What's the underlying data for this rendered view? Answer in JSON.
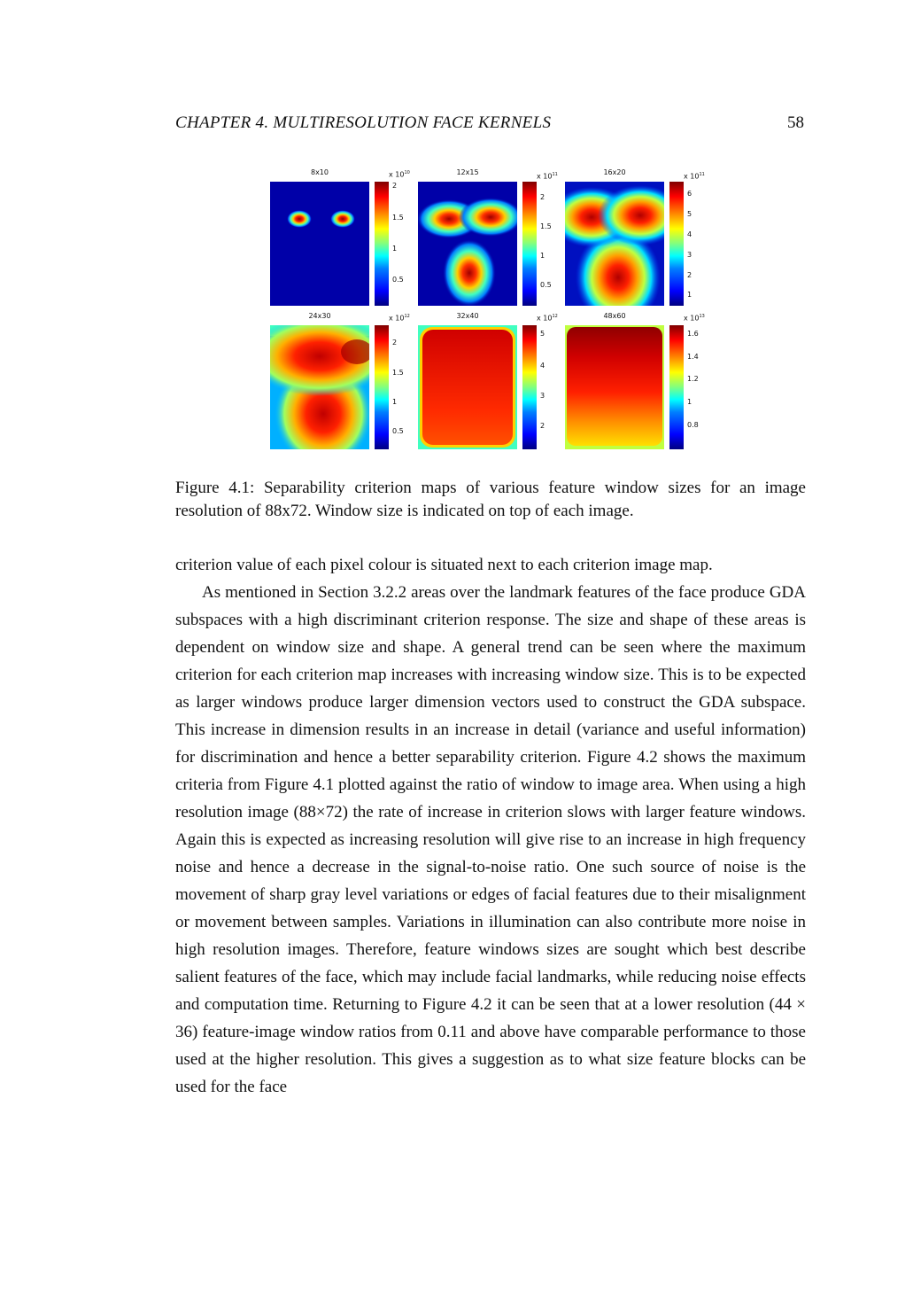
{
  "header": {
    "chapter": "CHAPTER 4.   MULTIRESOLUTION FACE KERNELS",
    "page_number": "58"
  },
  "figure": {
    "panels": [
      {
        "title": "8x10",
        "exponent_base": "x 10",
        "exponent": "10",
        "ticks": [
          "2",
          "1.5",
          "1",
          "0.5"
        ]
      },
      {
        "title": "12x15",
        "exponent_base": "x 10",
        "exponent": "11",
        "ticks": [
          "2",
          "1.5",
          "1",
          "0.5"
        ]
      },
      {
        "title": "16x20",
        "exponent_base": "x 10",
        "exponent": "11",
        "ticks": [
          "6",
          "5",
          "4",
          "3",
          "2",
          "1"
        ]
      },
      {
        "title": "24x30",
        "exponent_base": "x 10",
        "exponent": "12",
        "ticks": [
          "2",
          "1.5",
          "1",
          "0.5"
        ]
      },
      {
        "title": "32x40",
        "exponent_base": "x 10",
        "exponent": "12",
        "ticks": [
          "5",
          "4",
          "3",
          "2"
        ]
      },
      {
        "title": "48x60",
        "exponent_base": "x 10",
        "exponent": "13",
        "ticks": [
          "1.6",
          "1.4",
          "1.2",
          "1",
          "0.8"
        ]
      }
    ],
    "caption": "Figure 4.1: Separability criterion maps of various feature window sizes for an image resolution of 88x72. Window size is indicated on top of each image."
  },
  "body": {
    "paragraph_1": "criterion value of each pixel colour is situated next to each criterion image map.",
    "paragraph_2": "As mentioned in Section 3.2.2 areas over the landmark features of the face produce GDA subspaces with a high discriminant criterion response. The size and shape of these areas is dependent on window size and shape. A general trend can be seen where the maximum criterion for each criterion map increases with increasing window size. This is to be expected as larger windows produce larger dimension vectors used to construct the GDA subspace. This increase in dimension results in an increase in detail (variance and useful information) for discrimination and hence a better separability criterion. Figure 4.2 shows the maximum criteria from Figure 4.1 plotted against the ratio of window to image area. When using a high resolution image (88×72) the rate of increase in criterion slows with larger feature windows. Again this is expected as increasing resolution will give rise to an increase in high frequency noise and hence a decrease in the signal-to-noise ratio. One such source of noise is the movement of sharp gray level variations or edges of facial features due to their misalignment or movement between samples. Variations in illumination can also contribute more noise in high resolution images. Therefore, feature windows sizes are sought which best describe salient features of the face, which may include facial landmarks, while reducing noise effects and computation time. Returning to Figure 4.2 it can be seen that at a lower resolution (44 × 36) feature-image window ratios from 0.11 and above have comparable performance to those used at the higher resolution. This gives a suggestion as to what size feature blocks can be used for the face"
  }
}
